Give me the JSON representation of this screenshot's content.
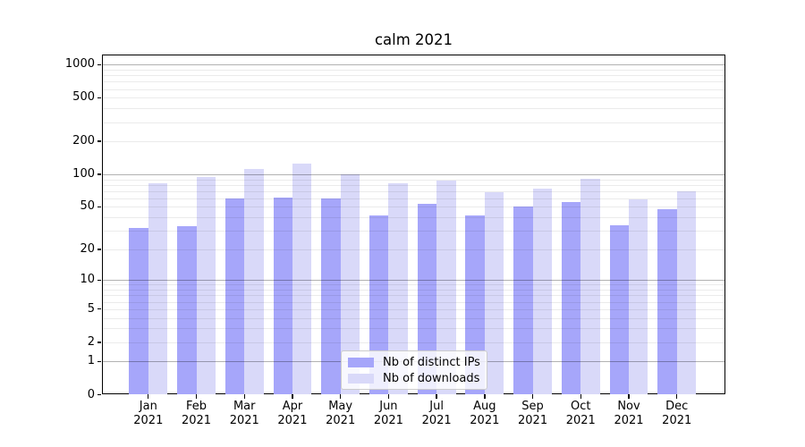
{
  "chart_data": {
    "type": "bar",
    "title": "calm 2021",
    "x_months": [
      "Jan",
      "Feb",
      "Mar",
      "Apr",
      "May",
      "Jun",
      "Jul",
      "Aug",
      "Sep",
      "Oct",
      "Nov",
      "Dec"
    ],
    "x_year": "2021",
    "categories": [
      "Jan 2021",
      "Feb 2021",
      "Mar 2021",
      "Apr 2021",
      "May 2021",
      "Jun 2021",
      "Jul 2021",
      "Aug 2021",
      "Sep 2021",
      "Oct 2021",
      "Nov 2021",
      "Dec 2021"
    ],
    "series": [
      {
        "name": "Nb of distinct IPs",
        "color": "#a6a6fa",
        "values": [
          32,
          33,
          60,
          61,
          60,
          42,
          53,
          42,
          50,
          56,
          34,
          48
        ]
      },
      {
        "name": "Nb of downloads",
        "color": "#d9d9f9",
        "values": [
          82,
          95,
          112,
          125,
          99,
          82,
          88,
          69,
          74,
          91,
          59,
          70
        ]
      }
    ],
    "y_ticks": [
      0,
      1,
      2,
      5,
      10,
      20,
      50,
      100,
      200,
      500,
      1000
    ],
    "y_major_gridlines": [
      1,
      10,
      100,
      1000
    ],
    "scale": "log(1+x)",
    "ylim": [
      0,
      1240
    ],
    "grid": "on",
    "legend_position": "lower center",
    "colors": {
      "major_grid": "#b4b4b4",
      "minor_grid": "#ebebeb",
      "axis": "#000000",
      "legend_border": "#cccccc"
    }
  }
}
